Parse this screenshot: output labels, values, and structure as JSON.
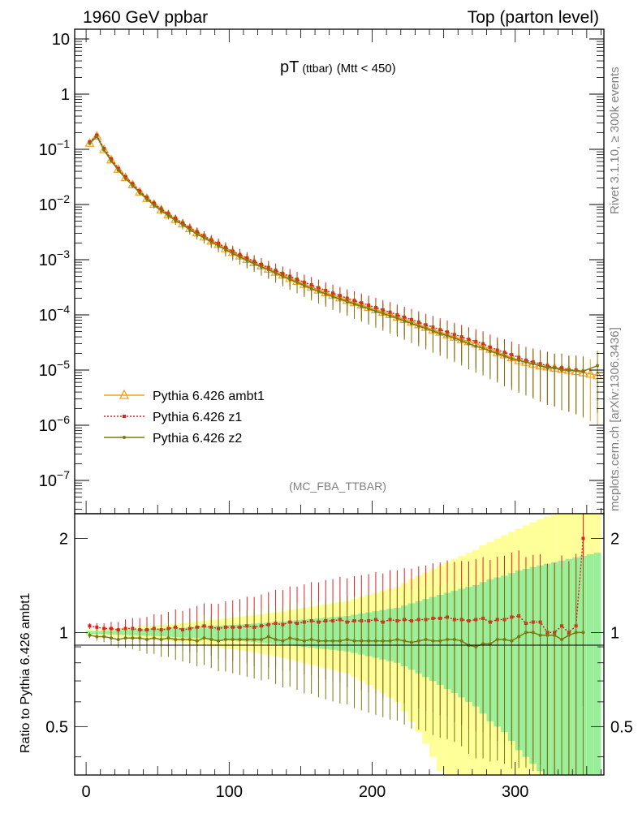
{
  "header": {
    "left": "1960 GeV ppbar",
    "right": "Top (parton level)"
  },
  "side_text": {
    "rivet": "Rivet 3.1.10, ≥ 300k events",
    "mcplots": "mcplots.cern.ch [arXiv:1306.3436]"
  },
  "colors": {
    "ambt1": "#f0a020",
    "z1": "#e02020",
    "z2": "#7a7a10",
    "band_yellow": "#ffff99",
    "band_green": "#99ee99"
  },
  "chart_data": [
    {
      "type": "line",
      "title_main": "pT",
      "title_small": "(ttbar)",
      "title_rest": "(Mtt < 450)",
      "annotation": "(MC_FBA_TTBAR)",
      "yscale": "log",
      "xlim": [
        -8,
        362
      ],
      "ylim": [
        2.5e-08,
        15
      ],
      "yticks": [
        {
          "value": 10,
          "label": "10"
        },
        {
          "value": 1,
          "label": "1"
        },
        {
          "value": 0.1,
          "label": "10",
          "exp": "−1"
        },
        {
          "value": 0.01,
          "label": "10",
          "exp": "−2"
        },
        {
          "value": 0.001,
          "label": "10",
          "exp": "−3"
        },
        {
          "value": 0.0001,
          "label": "10",
          "exp": "−4"
        },
        {
          "value": 1e-05,
          "label": "10",
          "exp": "−5"
        },
        {
          "value": 1e-06,
          "label": "10",
          "exp": "−6"
        },
        {
          "value": 1e-07,
          "label": "10",
          "exp": "−7"
        }
      ],
      "legend_position": "lower-left",
      "series": [
        {
          "name": "Pythia 6.426 ambt1",
          "style": "solid-triangle",
          "x": [
            2.5,
            7.5,
            12.5,
            17.5,
            22.5,
            27.5,
            32.5,
            37.5,
            42.5,
            47.5,
            52.5,
            57.5,
            62.5,
            67.5,
            72.5,
            77.5,
            82.5,
            87.5,
            92.5,
            97.5,
            102.5,
            107.5,
            112.5,
            117.5,
            122.5,
            127.5,
            132.5,
            137.5,
            142.5,
            147.5,
            152.5,
            157.5,
            162.5,
            167.5,
            172.5,
            177.5,
            182.5,
            187.5,
            192.5,
            197.5,
            202.5,
            207.5,
            212.5,
            217.5,
            222.5,
            227.5,
            232.5,
            237.5,
            242.5,
            247.5,
            252.5,
            257.5,
            262.5,
            267.5,
            272.5,
            277.5,
            282.5,
            287.5,
            292.5,
            297.5,
            302.5,
            307.5,
            312.5,
            317.5,
            322.5,
            327.5,
            332.5,
            337.5,
            342.5,
            347.5,
            352.5,
            357.5
          ],
          "y": [
            0.13,
            0.175,
            0.1,
            0.065,
            0.044,
            0.031,
            0.023,
            0.017,
            0.013,
            0.0102,
            0.0081,
            0.0066,
            0.0054,
            0.0045,
            0.0037,
            0.0031,
            0.0026,
            0.0022,
            0.0019,
            0.0016,
            0.00137,
            0.00118,
            0.00102,
            0.00089,
            0.00078,
            0.00068,
            0.0006,
            0.00053,
            0.00046,
            0.00041,
            0.00036,
            0.00032,
            0.000285,
            0.000255,
            0.000228,
            0.000205,
            0.000185,
            0.000168,
            0.000152,
            0.000138,
            0.000125,
            0.000113,
            0.000102,
            9.2e-05,
            8.3e-05,
            7.5e-05,
            6.7e-05,
            6e-05,
            5.4e-05,
            4.9e-05,
            4.4e-05,
            4e-05,
            3.6e-05,
            3.3e-05,
            3e-05,
            2.7e-05,
            2.4e-05,
            2.1e-05,
            1.9e-05,
            1.7e-05,
            1.5e-05,
            1.4e-05,
            1.3e-05,
            1.2e-05,
            1.15e-05,
            1.1e-05,
            1.05e-05,
            1e-05,
            9.5e-06,
            9e-06,
            8.5e-06,
            8e-06
          ]
        },
        {
          "name": "Pythia 6.426 z1",
          "style": "dotted-square",
          "x": [
            2.5,
            7.5,
            12.5,
            17.5,
            22.5,
            27.5,
            32.5,
            37.5,
            42.5,
            47.5,
            52.5,
            57.5,
            62.5,
            67.5,
            72.5,
            77.5,
            82.5,
            87.5,
            92.5,
            97.5,
            102.5,
            107.5,
            112.5,
            117.5,
            122.5,
            127.5,
            132.5,
            137.5,
            142.5,
            147.5,
            152.5,
            157.5,
            162.5,
            167.5,
            172.5,
            177.5,
            182.5,
            187.5,
            192.5,
            197.5,
            202.5,
            207.5,
            212.5,
            217.5,
            222.5,
            227.5,
            232.5,
            237.5,
            242.5,
            247.5,
            252.5,
            257.5,
            262.5,
            267.5,
            272.5,
            277.5,
            282.5,
            287.5,
            292.5,
            297.5,
            302.5,
            307.5,
            312.5,
            317.5,
            322.5,
            327.5,
            332.5,
            337.5,
            342.5,
            347.5
          ],
          "y": [
            0.136,
            0.181,
            0.103,
            0.067,
            0.045,
            0.0318,
            0.0236,
            0.0174,
            0.0133,
            0.0105,
            0.0083,
            0.0068,
            0.0056,
            0.0046,
            0.0038,
            0.0032,
            0.0027,
            0.00228,
            0.00196,
            0.00166,
            0.00142,
            0.00123,
            0.00107,
            0.00093,
            0.00082,
            0.00072,
            0.00064,
            0.00056,
            0.0005,
            0.00044,
            0.00039,
            0.00035,
            0.00031,
            0.000277,
            0.000248,
            0.000223,
            0.0002,
            0.000183,
            0.000165,
            0.00015,
            0.000136,
            0.000123,
            0.000112,
            0.0001,
            9.1e-05,
            8.2e-05,
            7.4e-05,
            6.6e-05,
            6e-05,
            5.4e-05,
            4.9e-05,
            4.4e-05,
            4e-05,
            3.6e-05,
            3.3e-05,
            3e-05,
            2.6e-05,
            2.3e-05,
            2.1e-05,
            1.9e-05,
            1.7e-05,
            1.5e-05,
            1.4e-05,
            1.3e-05,
            1.2e-05,
            1.1e-05,
            1.1e-05,
            1e-05,
            1e-05,
            9.5e-06
          ]
        },
        {
          "name": "Pythia 6.426 z2",
          "style": "solid-dot",
          "x": [
            2.5,
            7.5,
            12.5,
            17.5,
            22.5,
            27.5,
            32.5,
            37.5,
            42.5,
            47.5,
            52.5,
            57.5,
            62.5,
            67.5,
            72.5,
            77.5,
            82.5,
            87.5,
            92.5,
            97.5,
            102.5,
            107.5,
            112.5,
            117.5,
            122.5,
            127.5,
            132.5,
            137.5,
            142.5,
            147.5,
            152.5,
            157.5,
            162.5,
            167.5,
            172.5,
            177.5,
            182.5,
            187.5,
            192.5,
            197.5,
            202.5,
            207.5,
            212.5,
            217.5,
            222.5,
            227.5,
            232.5,
            237.5,
            242.5,
            247.5,
            252.5,
            257.5,
            262.5,
            267.5,
            272.5,
            277.5,
            282.5,
            287.5,
            292.5,
            297.5,
            302.5,
            307.5,
            312.5,
            317.5,
            322.5,
            327.5,
            332.5,
            337.5,
            342.5,
            347.5,
            357.5
          ],
          "y": [
            0.128,
            0.17,
            0.097,
            0.062,
            0.042,
            0.0298,
            0.0221,
            0.0163,
            0.0125,
            0.0097,
            0.0077,
            0.0063,
            0.0051,
            0.0043,
            0.0035,
            0.0029,
            0.0025,
            0.0021,
            0.00178,
            0.00152,
            0.0013,
            0.00112,
            0.00097,
            0.00085,
            0.00074,
            0.00066,
            0.00057,
            0.0005,
            0.00044,
            0.00039,
            0.00034,
            0.0003,
            0.000268,
            0.00024,
            0.000215,
            0.000193,
            0.000175,
            0.000158,
            0.000143,
            0.00013,
            0.000117,
            0.000106,
            9.6e-05,
            8.7e-05,
            7.8e-05,
            7e-05,
            6.3e-05,
            5.7e-05,
            5.1e-05,
            4.6e-05,
            4.2e-05,
            3.8e-05,
            3.4e-05,
            3e-05,
            2.7e-05,
            2.5e-05,
            2.2e-05,
            2e-05,
            1.8e-05,
            1.6e-05,
            1.5e-05,
            1.4e-05,
            1.3e-05,
            1.2e-05,
            1.1e-05,
            1.1e-05,
            1e-05,
            1e-05,
            9.8e-06,
            9.5e-06,
            1.2e-05
          ]
        }
      ]
    },
    {
      "type": "line",
      "ylabel": "Ratio to Pythia 6.426 ambt1",
      "xlim": [
        -8,
        362
      ],
      "ylim": [
        0.35,
        2.4
      ],
      "yscale": "log",
      "yticks": [
        {
          "value": 0.5,
          "label": "0.5"
        },
        {
          "value": 1,
          "label": "1"
        },
        {
          "value": 2,
          "label": "2"
        }
      ],
      "xticks": [
        {
          "value": 0,
          "label": "0"
        },
        {
          "value": 100,
          "label": "100"
        },
        {
          "value": 200,
          "label": "200"
        },
        {
          "value": 300,
          "label": "300"
        }
      ],
      "band_x": [
        2.5,
        7.5,
        12.5,
        17.5,
        22.5,
        27.5,
        32.5,
        37.5,
        42.5,
        47.5,
        52.5,
        57.5,
        62.5,
        67.5,
        72.5,
        77.5,
        82.5,
        87.5,
        92.5,
        97.5,
        102.5,
        107.5,
        112.5,
        117.5,
        122.5,
        127.5,
        132.5,
        137.5,
        142.5,
        147.5,
        152.5,
        157.5,
        162.5,
        167.5,
        172.5,
        177.5,
        182.5,
        187.5,
        192.5,
        197.5,
        202.5,
        207.5,
        212.5,
        217.5,
        222.5,
        227.5,
        232.5,
        237.5,
        242.5,
        247.5,
        252.5,
        257.5,
        262.5,
        267.5,
        272.5,
        277.5,
        282.5,
        287.5,
        292.5,
        297.5,
        302.5,
        307.5,
        312.5,
        317.5,
        322.5,
        327.5,
        332.5,
        337.5,
        342.5,
        347.5,
        352.5,
        357.5
      ],
      "band_green_halfwidth": [
        0.01,
        0.01,
        0.012,
        0.014,
        0.016,
        0.018,
        0.02,
        0.022,
        0.024,
        0.026,
        0.028,
        0.03,
        0.033,
        0.036,
        0.039,
        0.042,
        0.045,
        0.048,
        0.051,
        0.055,
        0.058,
        0.061,
        0.064,
        0.068,
        0.072,
        0.076,
        0.08,
        0.085,
        0.09,
        0.095,
        0.1,
        0.105,
        0.11,
        0.115,
        0.12,
        0.125,
        0.13,
        0.14,
        0.15,
        0.16,
        0.17,
        0.18,
        0.19,
        0.2,
        0.22,
        0.24,
        0.26,
        0.28,
        0.3,
        0.32,
        0.34,
        0.36,
        0.38,
        0.4,
        0.42,
        0.45,
        0.48,
        0.5,
        0.52,
        0.55,
        0.58,
        0.6,
        0.62,
        0.64,
        0.66,
        0.68,
        0.7,
        0.72,
        0.74,
        0.76,
        0.78,
        0.8
      ],
      "band_yellow_halfwidth": [
        0.02,
        0.02,
        0.024,
        0.028,
        0.032,
        0.036,
        0.04,
        0.044,
        0.048,
        0.052,
        0.056,
        0.06,
        0.066,
        0.072,
        0.078,
        0.084,
        0.09,
        0.096,
        0.102,
        0.11,
        0.116,
        0.122,
        0.128,
        0.136,
        0.144,
        0.152,
        0.16,
        0.17,
        0.18,
        0.19,
        0.2,
        0.21,
        0.22,
        0.23,
        0.24,
        0.25,
        0.26,
        0.28,
        0.3,
        0.32,
        0.34,
        0.36,
        0.38,
        0.4,
        0.44,
        0.48,
        0.52,
        0.56,
        0.6,
        0.64,
        0.68,
        0.72,
        0.76,
        0.8,
        0.84,
        0.9,
        0.95,
        1.0,
        1.05,
        1.1,
        1.15,
        1.2,
        1.25,
        1.3,
        1.35,
        1.4,
        1.45,
        1.5,
        1.55,
        1.6,
        1.65,
        1.7
      ],
      "series": [
        {
          "name": "Pythia 6.426 z1",
          "style": "dotted-square",
          "x": [
            2.5,
            7.5,
            12.5,
            17.5,
            22.5,
            27.5,
            32.5,
            37.5,
            42.5,
            47.5,
            52.5,
            57.5,
            62.5,
            67.5,
            72.5,
            77.5,
            82.5,
            87.5,
            92.5,
            97.5,
            102.5,
            107.5,
            112.5,
            117.5,
            122.5,
            127.5,
            132.5,
            137.5,
            142.5,
            147.5,
            152.5,
            157.5,
            162.5,
            167.5,
            172.5,
            177.5,
            182.5,
            187.5,
            192.5,
            197.5,
            202.5,
            207.5,
            212.5,
            217.5,
            222.5,
            227.5,
            232.5,
            237.5,
            242.5,
            247.5,
            252.5,
            257.5,
            262.5,
            267.5,
            272.5,
            277.5,
            282.5,
            287.5,
            292.5,
            297.5,
            302.5,
            307.5,
            312.5,
            317.5,
            322.5,
            327.5,
            332.5,
            337.5,
            342.5,
            347.5
          ],
          "y": [
            1.05,
            1.04,
            1.03,
            1.03,
            1.02,
            1.03,
            1.03,
            1.02,
            1.02,
            1.03,
            1.02,
            1.03,
            1.04,
            1.02,
            1.03,
            1.04,
            1.05,
            1.04,
            1.03,
            1.04,
            1.04,
            1.04,
            1.05,
            1.04,
            1.05,
            1.06,
            1.07,
            1.06,
            1.08,
            1.07,
            1.08,
            1.09,
            1.08,
            1.09,
            1.09,
            1.1,
            1.08,
            1.09,
            1.09,
            1.09,
            1.1,
            1.08,
            1.1,
            1.09,
            1.1,
            1.09,
            1.1,
            1.1,
            1.11,
            1.11,
            1.12,
            1.1,
            1.1,
            1.09,
            1.1,
            1.11,
            1.08,
            1.1,
            1.1,
            1.12,
            1.13,
            1.07,
            1.08,
            1.08,
            1.0,
            1.0,
            1.05,
            1.0,
            1.05,
            2.0
          ]
        },
        {
          "name": "Pythia 6.426 z2",
          "style": "solid-dot",
          "x": [
            2.5,
            7.5,
            12.5,
            17.5,
            22.5,
            27.5,
            32.5,
            37.5,
            42.5,
            47.5,
            52.5,
            57.5,
            62.5,
            67.5,
            72.5,
            77.5,
            82.5,
            87.5,
            92.5,
            97.5,
            102.5,
            107.5,
            112.5,
            117.5,
            122.5,
            127.5,
            132.5,
            137.5,
            142.5,
            147.5,
            152.5,
            157.5,
            162.5,
            167.5,
            172.5,
            177.5,
            182.5,
            187.5,
            192.5,
            197.5,
            202.5,
            207.5,
            212.5,
            217.5,
            222.5,
            227.5,
            232.5,
            237.5,
            242.5,
            247.5,
            252.5,
            257.5,
            262.5,
            267.5,
            272.5,
            277.5,
            282.5,
            287.5,
            292.5,
            297.5,
            302.5,
            307.5,
            312.5,
            317.5,
            322.5,
            327.5,
            332.5,
            337.5,
            342.5,
            347.5
          ],
          "y": [
            0.98,
            0.97,
            0.97,
            0.96,
            0.95,
            0.96,
            0.96,
            0.96,
            0.95,
            0.96,
            0.95,
            0.96,
            0.95,
            0.95,
            0.95,
            0.94,
            0.96,
            0.95,
            0.94,
            0.95,
            0.95,
            0.95,
            0.95,
            0.95,
            0.95,
            0.97,
            0.95,
            0.94,
            0.96,
            0.95,
            0.94,
            0.95,
            0.94,
            0.94,
            0.94,
            0.94,
            0.95,
            0.94,
            0.94,
            0.94,
            0.94,
            0.94,
            0.94,
            0.95,
            0.94,
            0.93,
            0.94,
            0.95,
            0.94,
            0.94,
            0.95,
            0.95,
            0.94,
            0.91,
            0.9,
            0.92,
            0.92,
            0.95,
            0.95,
            0.94,
            0.97,
            1.0,
            1.0,
            0.98,
            0.98,
            0.98,
            0.95,
            0.98,
            1.0,
            1.0
          ]
        }
      ]
    }
  ]
}
